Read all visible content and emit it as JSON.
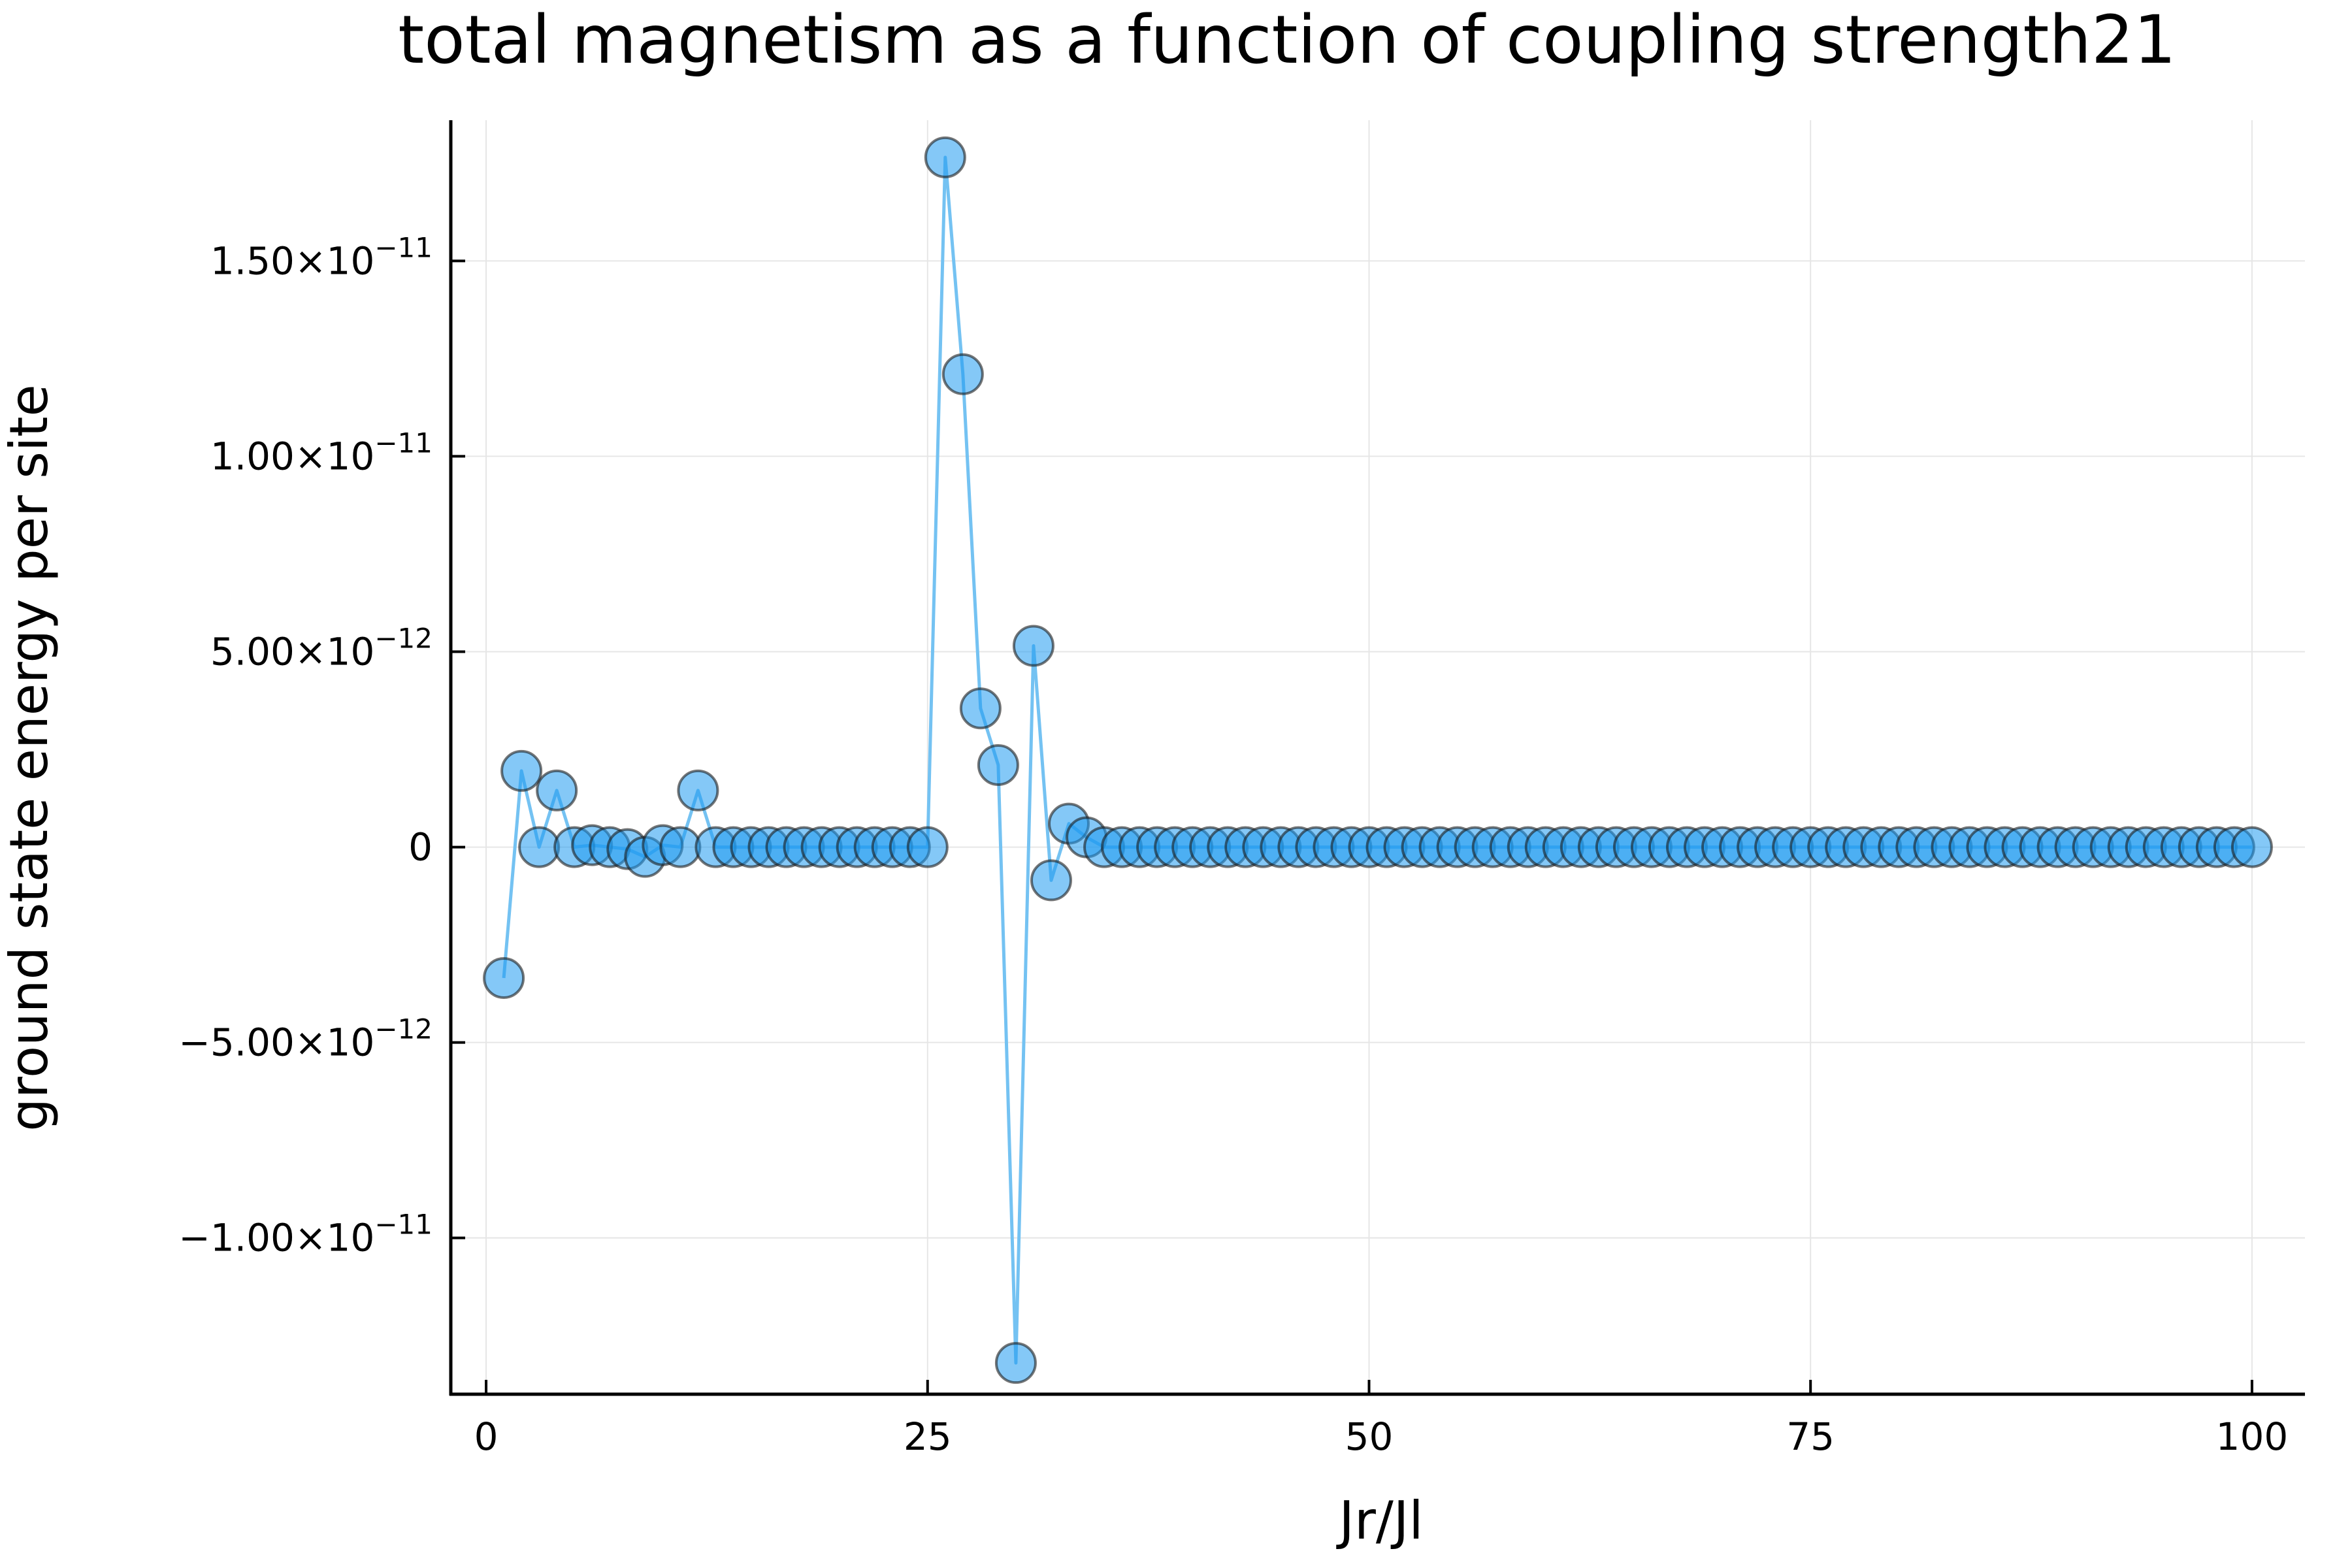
{
  "chart_data": {
    "type": "scatter",
    "title": "total magnetism as a function of coupling strength21",
    "xlabel": "Jr/Jl",
    "ylabel": "ground state energy per site",
    "xlim": [
      -2,
      103
    ],
    "ylim": [
      -1.4e-11,
      1.86e-11
    ],
    "x_ticks": [
      {
        "value": 0,
        "label": "0"
      },
      {
        "value": 25,
        "label": "25"
      },
      {
        "value": 50,
        "label": "50"
      },
      {
        "value": 75,
        "label": "75"
      },
      {
        "value": 100,
        "label": "100"
      }
    ],
    "y_ticks": [
      {
        "value": 1.5e-11,
        "mantissa": "1.50×10",
        "exponent": "−11"
      },
      {
        "value": 1e-11,
        "mantissa": "1.00×10",
        "exponent": "−11"
      },
      {
        "value": 5e-12,
        "mantissa": "5.00×10",
        "exponent": "−12"
      },
      {
        "value": 0,
        "mantissa": "0",
        "exponent": ""
      },
      {
        "value": -5e-12,
        "mantissa": "−5.00×10",
        "exponent": "−12"
      },
      {
        "value": -1e-11,
        "mantissa": "−1.00×10",
        "exponent": "−11"
      }
    ],
    "grid": true,
    "legend": "none",
    "colors": {
      "marker_fill": "#1f9bf0",
      "marker_edge": "#1a1a1a",
      "line": "#74c2f2",
      "grid": "#e6e6e6",
      "axis": "#000000"
    },
    "series": [
      {
        "x": [
          1,
          2,
          3,
          4,
          5,
          6,
          7,
          8,
          9,
          10,
          11,
          12,
          13,
          14,
          15,
          16,
          17,
          18,
          19,
          20,
          21,
          22,
          23,
          24,
          25,
          26,
          27,
          28,
          29,
          30,
          31,
          32,
          33,
          34,
          35,
          36,
          37,
          38,
          39,
          40,
          41,
          42,
          43,
          44,
          45,
          46,
          47,
          48,
          49,
          50,
          51,
          52,
          53,
          54,
          55,
          56,
          57,
          58,
          59,
          60,
          61,
          62,
          63,
          64,
          65,
          66,
          67,
          68,
          69,
          70,
          71,
          72,
          73,
          74,
          75,
          76,
          77,
          78,
          79,
          80,
          81,
          82,
          83,
          84,
          85,
          86,
          87,
          88,
          89,
          90,
          91,
          92,
          93,
          94,
          95,
          96,
          97,
          98,
          99,
          100
        ],
        "y": [
          -3.35e-12,
          1.95e-12,
          0,
          1.45e-12,
          0,
          5e-14,
          0,
          -5e-14,
          -2.5e-13,
          5e-14,
          0,
          1.45e-12,
          0,
          0,
          0,
          0,
          0,
          0,
          0,
          0,
          0,
          0,
          0,
          0,
          0,
          1.765e-11,
          1.21e-11,
          3.55e-12,
          2.1e-12,
          -1.32e-11,
          5.15e-12,
          -8.5e-13,
          6e-13,
          2.5e-13,
          0,
          0,
          0,
          0,
          0,
          0,
          0,
          0,
          0,
          0,
          0,
          0,
          0,
          0,
          0,
          0,
          0,
          0,
          0,
          0,
          0,
          0,
          0,
          0,
          0,
          0,
          0,
          0,
          0,
          0,
          0,
          0,
          0,
          0,
          0,
          0,
          0,
          0,
          0,
          0,
          0,
          0,
          0,
          0,
          0,
          0,
          0,
          0,
          0,
          0,
          0,
          0,
          0,
          0,
          0,
          0,
          0,
          0,
          0,
          0,
          0,
          0,
          0,
          0,
          0,
          0
        ]
      }
    ]
  }
}
